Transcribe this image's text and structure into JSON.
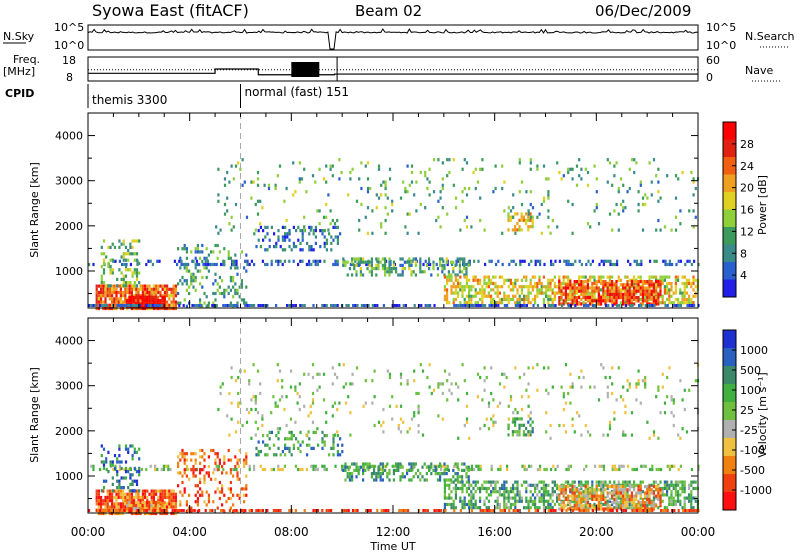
{
  "header": {
    "station": "Syowa East (fitACF)",
    "beam": "Beam 02",
    "date": "06/Dec/2009"
  },
  "top_panels": {
    "nsky": {
      "left_label": "N.Sky",
      "left_ticks": [
        "10^5",
        "10^0"
      ],
      "right_label": "N.Search",
      "right_ticks": [
        "10^5",
        "10^0"
      ],
      "right_legend_style": "dotted"
    },
    "freq": {
      "left_label": "Freq.",
      "left_unit": "[MHz]",
      "left_ticks": [
        "18",
        "8"
      ],
      "right_label": "Nave",
      "right_ticks": [
        "60",
        "0"
      ],
      "right_legend_style": "dotted",
      "freq_steps": [
        {
          "t": 0.0,
          "mhz": 11.2
        },
        {
          "t": 5.0,
          "mhz": 13.0
        },
        {
          "t": 6.7,
          "mhz": 10.6
        },
        {
          "t": 9.7,
          "mhz": 10.9
        },
        {
          "t": 24.0,
          "mhz": 10.9
        }
      ],
      "nave_level": 28
    },
    "cpid": {
      "label": "CPID",
      "segments": [
        {
          "name": "themis 3300",
          "t_start": 0.0,
          "t_end": 6.0
        },
        {
          "name": "normal (fast) 151",
          "t_start": 6.0,
          "t_end": 24.0
        }
      ]
    }
  },
  "chart_data": [
    {
      "type": "heatmap",
      "name": "power",
      "title": "",
      "ylabel": "Slant Range [km]",
      "ylim": [
        180,
        4500
      ],
      "yticks": [
        1000,
        2000,
        3000,
        4000
      ],
      "xlim": [
        0,
        24
      ],
      "colorbar": {
        "label": "Power [dB]",
        "ticks": [
          "28",
          "24",
          "20",
          "16",
          "12",
          "8",
          "4"
        ],
        "range": [
          0,
          30
        ],
        "colors": [
          "#1f1fe6",
          "#2a5fd0",
          "#3a8a8a",
          "#3c9a5a",
          "#8fcf3a",
          "#e0d020",
          "#f0a020",
          "#f06010",
          "#e02010",
          "#ff0000"
        ]
      },
      "features": [
        {
          "t0": 0.0,
          "t1": 24.0,
          "r0": 1150,
          "r1": 1250,
          "density": 0.35,
          "level": 0.15
        },
        {
          "t0": 0.3,
          "t1": 3.5,
          "r0": 200,
          "r1": 700,
          "density": 0.85,
          "level": 0.75
        },
        {
          "t0": 1.5,
          "t1": 3.0,
          "r0": 200,
          "r1": 450,
          "density": 0.95,
          "level": 0.95
        },
        {
          "t0": 3.5,
          "t1": 6.2,
          "r0": 200,
          "r1": 1600,
          "density": 0.25,
          "level": 0.3
        },
        {
          "t0": 0.5,
          "t1": 2.0,
          "r0": 700,
          "r1": 1700,
          "density": 0.3,
          "level": 0.4
        },
        {
          "t0": 6.5,
          "t1": 10.0,
          "r0": 1500,
          "r1": 2000,
          "density": 0.3,
          "level": 0.2
        },
        {
          "t0": 10.0,
          "t1": 15.0,
          "r0": 900,
          "r1": 1300,
          "density": 0.4,
          "level": 0.35
        },
        {
          "t0": 14.0,
          "t1": 24.0,
          "r0": 300,
          "r1": 900,
          "density": 0.55,
          "level": 0.55
        },
        {
          "t0": 18.5,
          "t1": 22.5,
          "r0": 300,
          "r1": 800,
          "density": 0.7,
          "level": 0.8
        },
        {
          "t0": 16.5,
          "t1": 17.5,
          "r0": 1900,
          "r1": 2300,
          "density": 0.5,
          "level": 0.6
        },
        {
          "t0": 5.0,
          "t1": 24.0,
          "r0": 1800,
          "r1": 3500,
          "density": 0.06,
          "level": 0.35
        }
      ]
    },
    {
      "type": "heatmap",
      "name": "velocity",
      "title": "",
      "ylabel": "Slant Range [km]",
      "ylim": [
        180,
        4500
      ],
      "yticks": [
        1000,
        2000,
        3000,
        4000
      ],
      "xlabel": "Time UT",
      "xticks": [
        "00:00",
        "04:00",
        "08:00",
        "12:00",
        "16:00",
        "20:00",
        "00:00"
      ],
      "xlim": [
        0,
        24
      ],
      "colorbar": {
        "label": "Velocity [m s⁻¹]",
        "ticks": [
          "1000",
          "500",
          "100",
          "25",
          "-25",
          "-100",
          "-500",
          "-1000"
        ],
        "range": [
          -1000,
          1000
        ],
        "colors": [
          "#ff1010",
          "#f04010",
          "#f08010",
          "#f0c040",
          "#b0b0b0",
          "#70c040",
          "#40b040",
          "#3a8a6a",
          "#2a60c0",
          "#1f30d0"
        ]
      },
      "features": [
        {
          "t0": 0.0,
          "t1": 24.0,
          "r0": 1150,
          "r1": 1250,
          "density": 0.35,
          "level": 0.5
        },
        {
          "t0": 0.3,
          "t1": 3.5,
          "r0": 200,
          "r1": 700,
          "density": 0.85,
          "level": 0.2
        },
        {
          "t0": 1.5,
          "t1": 3.0,
          "r0": 200,
          "r1": 450,
          "density": 0.95,
          "level": 0.25
        },
        {
          "t0": 3.5,
          "t1": 6.2,
          "r0": 200,
          "r1": 1600,
          "density": 0.25,
          "level": 0.2
        },
        {
          "t0": 0.5,
          "t1": 2.0,
          "r0": 700,
          "r1": 1700,
          "density": 0.3,
          "level": 0.8
        },
        {
          "t0": 6.5,
          "t1": 10.0,
          "r0": 1500,
          "r1": 2000,
          "density": 0.3,
          "level": 0.7
        },
        {
          "t0": 10.0,
          "t1": 15.0,
          "r0": 900,
          "r1": 1300,
          "density": 0.4,
          "level": 0.7
        },
        {
          "t0": 14.0,
          "t1": 24.0,
          "r0": 300,
          "r1": 900,
          "density": 0.55,
          "level": 0.65
        },
        {
          "t0": 18.5,
          "t1": 22.5,
          "r0": 300,
          "r1": 800,
          "density": 0.7,
          "level": 0.3
        },
        {
          "t0": 16.5,
          "t1": 17.5,
          "r0": 1900,
          "r1": 2300,
          "density": 0.5,
          "level": 0.65
        },
        {
          "t0": 5.0,
          "t1": 24.0,
          "r0": 1800,
          "r1": 3500,
          "density": 0.06,
          "level": 0.5
        }
      ]
    }
  ]
}
